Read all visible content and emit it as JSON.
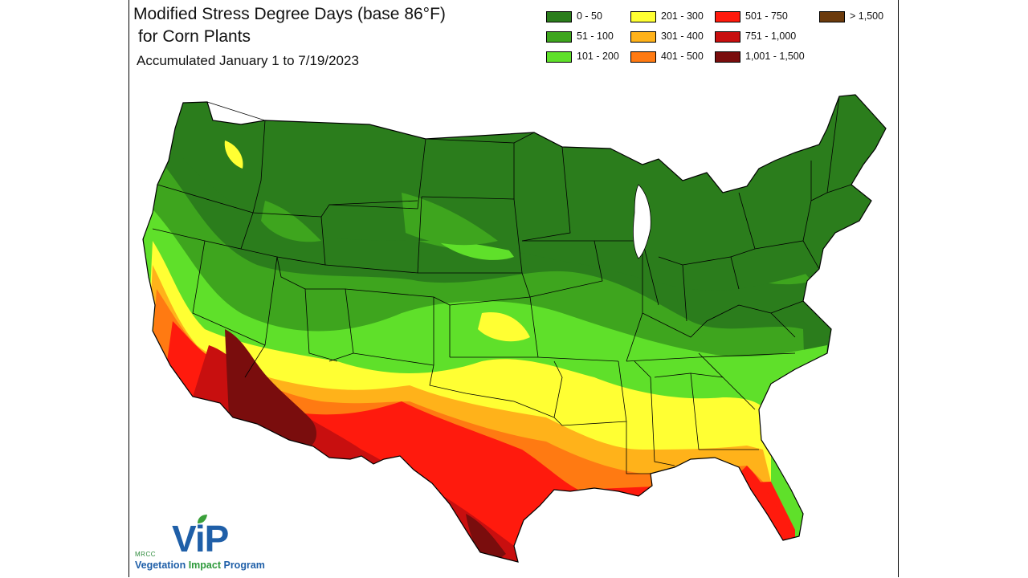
{
  "title_line1": "Modified Stress Degree Days (base 86°F)",
  "title_line2": "for Corn Plants",
  "subtitle": "Accumulated January 1 to 7/19/2023",
  "legend": [
    {
      "label": "0 - 50",
      "color": "#2b7d1c"
    },
    {
      "label": "51 - 100",
      "color": "#3ea51e"
    },
    {
      "label": "101 - 200",
      "color": "#5fe02a"
    },
    {
      "label": "201 - 300",
      "color": "#ffff33"
    },
    {
      "label": "301 - 400",
      "color": "#ffb21a"
    },
    {
      "label": "401 - 500",
      "color": "#ff7a12"
    },
    {
      "label": "501 - 750",
      "color": "#ff1a0d"
    },
    {
      "label": "751 - 1,000",
      "color": "#c80f0f"
    },
    {
      "label": "1,001 - 1,500",
      "color": "#7a0d0d"
    },
    {
      "label": "> 1,500",
      "color": "#6b3a0c"
    }
  ],
  "logo": {
    "org": "MRCC",
    "mark": "ViP",
    "name_part1": "Vegetation",
    "name_part2": "Impact",
    "name_part3": "Program"
  }
}
